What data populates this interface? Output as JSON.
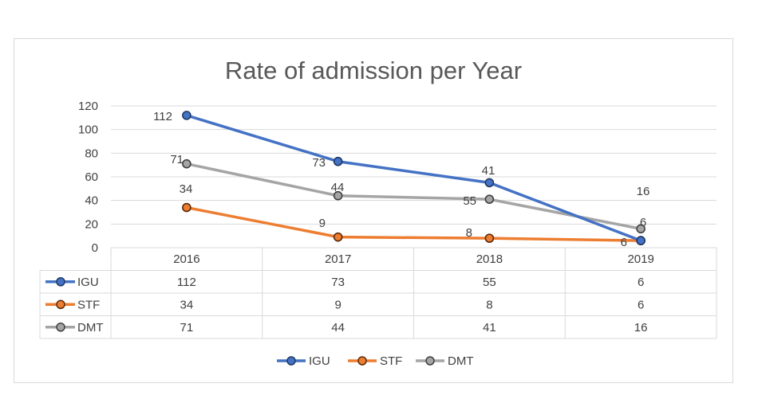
{
  "chart_data": {
    "type": "line",
    "title": "Rate of admission per Year",
    "categories": [
      "2016",
      "2017",
      "2018",
      "2019"
    ],
    "ylim": [
      0,
      120
    ],
    "yticks": [
      0,
      20,
      40,
      60,
      80,
      100,
      120
    ],
    "grid": true,
    "legend": "bottom",
    "series": [
      {
        "name": "IGU",
        "color": "#4472c4",
        "values": [
          112,
          73,
          55,
          6
        ]
      },
      {
        "name": "STF",
        "color": "#ed7d31",
        "values": [
          34,
          9,
          8,
          6
        ]
      },
      {
        "name": "DMT",
        "color": "#a5a5a5",
        "values": [
          71,
          44,
          41,
          16
        ]
      }
    ],
    "data_labels": [
      {
        "text": "112"
      },
      {
        "text": "73"
      },
      {
        "text": "41"
      },
      {
        "text": "71"
      },
      {
        "text": "44"
      },
      {
        "text": "55"
      },
      {
        "text": "34"
      },
      {
        "text": "9"
      },
      {
        "text": "8"
      },
      {
        "text": "16"
      },
      {
        "text": "6"
      },
      {
        "text": "6"
      }
    ]
  }
}
